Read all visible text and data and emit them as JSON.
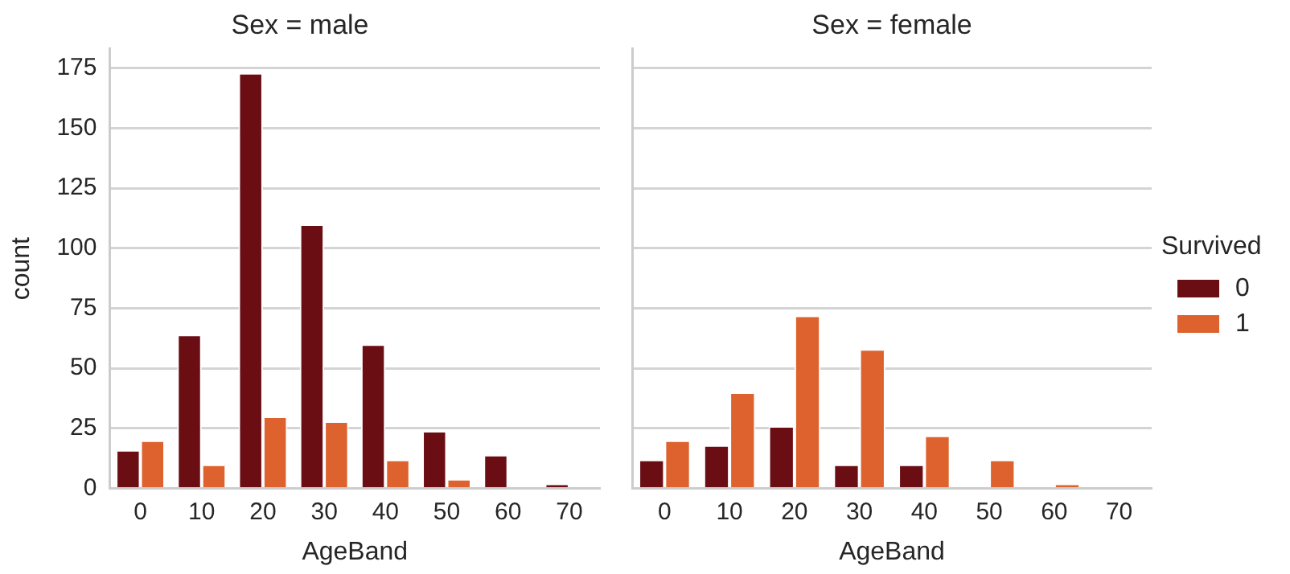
{
  "chart_data": [
    {
      "type": "bar",
      "title": "Sex = male",
      "xlabel": "AgeBand",
      "ylabel": "count",
      "categories": [
        "0",
        "10",
        "20",
        "30",
        "40",
        "50",
        "60",
        "70"
      ],
      "series": [
        {
          "color": "#6b0e14",
          "values": [
            16,
            64,
            173,
            110,
            60,
            24,
            14,
            2
          ]
        },
        {
          "color": "#dd622d",
          "values": [
            20,
            10,
            30,
            28,
            12,
            4,
            0,
            0
          ]
        }
      ],
      "ylim": [
        0,
        183
      ],
      "yticks": [
        0,
        25,
        50,
        75,
        100,
        125,
        150,
        175
      ],
      "grid": "y",
      "legend": false
    },
    {
      "type": "bar",
      "title": "Sex = female",
      "xlabel": "AgeBand",
      "legend_title": "Survived",
      "categories": [
        "0",
        "10",
        "20",
        "30",
        "40",
        "50",
        "60",
        "70"
      ],
      "series": [
        {
          "name": "0",
          "color": "#6b0e14",
          "values": [
            12,
            18,
            26,
            10,
            10,
            0,
            0,
            0
          ]
        },
        {
          "name": "1",
          "color": "#dd622d",
          "values": [
            20,
            40,
            72,
            58,
            22,
            12,
            2,
            0
          ]
        }
      ],
      "ylim": [
        0,
        183
      ],
      "yticks": [
        0,
        25,
        50,
        75,
        100,
        125,
        150,
        175
      ],
      "grid": "y",
      "legend": "right",
      "tick_labels": "x"
    }
  ]
}
